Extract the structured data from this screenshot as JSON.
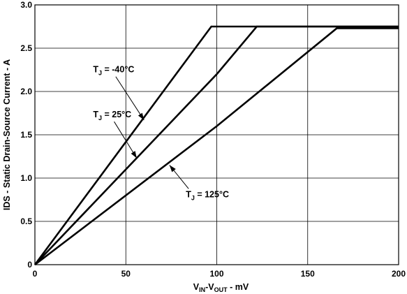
{
  "chart_data": {
    "type": "line",
    "title": "",
    "xlabel": {
      "parts": [
        {
          "text": "V",
          "sub": false
        },
        {
          "text": "IN",
          "sub": true
        },
        {
          "text": "-V",
          "sub": false
        },
        {
          "text": "OUT",
          "sub": true
        },
        {
          "text": " - mV",
          "sub": false
        }
      ]
    },
    "ylabel": "IDS - Static Drain-Source Current - A",
    "xlim": [
      0,
      200
    ],
    "ylim": [
      0,
      3.0
    ],
    "x_ticks": [
      0,
      50,
      100,
      150,
      200
    ],
    "x_tick_labels": [
      "0",
      "50",
      "100",
      "150",
      "200"
    ],
    "y_ticks": [
      0,
      0.5,
      1.0,
      1.5,
      2.0,
      2.5,
      3.0
    ],
    "y_tick_labels": [
      "0",
      "0.5",
      "1.0",
      "1.5",
      "2.0",
      "2.5",
      "3.0"
    ],
    "grid": true,
    "series": [
      {
        "key": "tj-minus40",
        "label_main": "T",
        "label_sub": "J",
        "label_rest": " = -40°C",
        "x": [
          0,
          97,
          200
        ],
        "y": [
          0,
          2.75,
          2.75
        ],
        "label_pos": {
          "x": 32,
          "y": 2.22
        },
        "arrow_to": {
          "x": 60,
          "y": 1.67
        }
      },
      {
        "key": "tj-25",
        "label_main": "T",
        "label_sub": "J",
        "label_rest": " = 25°C",
        "x": [
          0,
          100,
          122,
          200
        ],
        "y": [
          0,
          2.2,
          2.75,
          2.75
        ],
        "label_pos": {
          "x": 32,
          "y": 1.7
        },
        "arrow_to": {
          "x": 56,
          "y": 1.23
        }
      },
      {
        "key": "tj-125",
        "label_main": "T",
        "label_sub": "J",
        "label_rest": " = 125°C",
        "x": [
          0,
          100,
          166,
          200
        ],
        "y": [
          0,
          1.6,
          2.73,
          2.73
        ],
        "label_pos": {
          "x": 83,
          "y": 0.78
        },
        "arrow_to": {
          "x": 74,
          "y": 1.15
        }
      }
    ]
  }
}
